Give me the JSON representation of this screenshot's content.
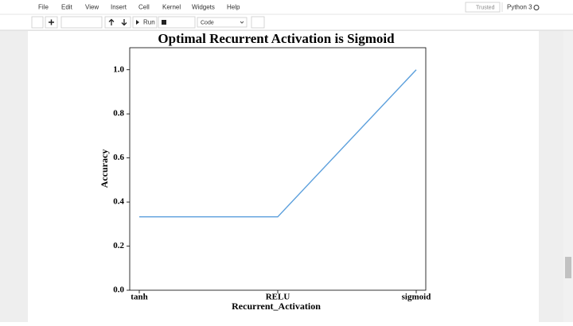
{
  "menu": [
    "File",
    "Edit",
    "View",
    "Insert",
    "Cell",
    "Kernel",
    "Widgets",
    "Help"
  ],
  "status": {
    "trusted": "Trusted",
    "kernel": "Python 3"
  },
  "toolbar": {
    "run": "Run",
    "cell_type": "Code"
  },
  "chart_data": {
    "type": "line",
    "title": "Optimal Recurrent Activation is Sigmoid",
    "x_label": "Recurrent_Activation",
    "y_label": "Accuracy",
    "categories": [
      "tanh",
      "RELU",
      "sigmoid"
    ],
    "values": [
      0.333,
      0.333,
      1.0
    ],
    "color": "#5b9fdc",
    "ylim": [
      0,
      1.1
    ],
    "yticks": [
      {
        "value": 0,
        "label": "0.0"
      },
      {
        "value": 0.2,
        "label": "0.2"
      },
      {
        "value": 0.4,
        "label": "0.4"
      },
      {
        "value": 0.6,
        "label": "0.6"
      },
      {
        "value": 0.8,
        "label": "0.8"
      },
      {
        "value": 1,
        "label": "1.0"
      }
    ],
    "grid": false
  }
}
